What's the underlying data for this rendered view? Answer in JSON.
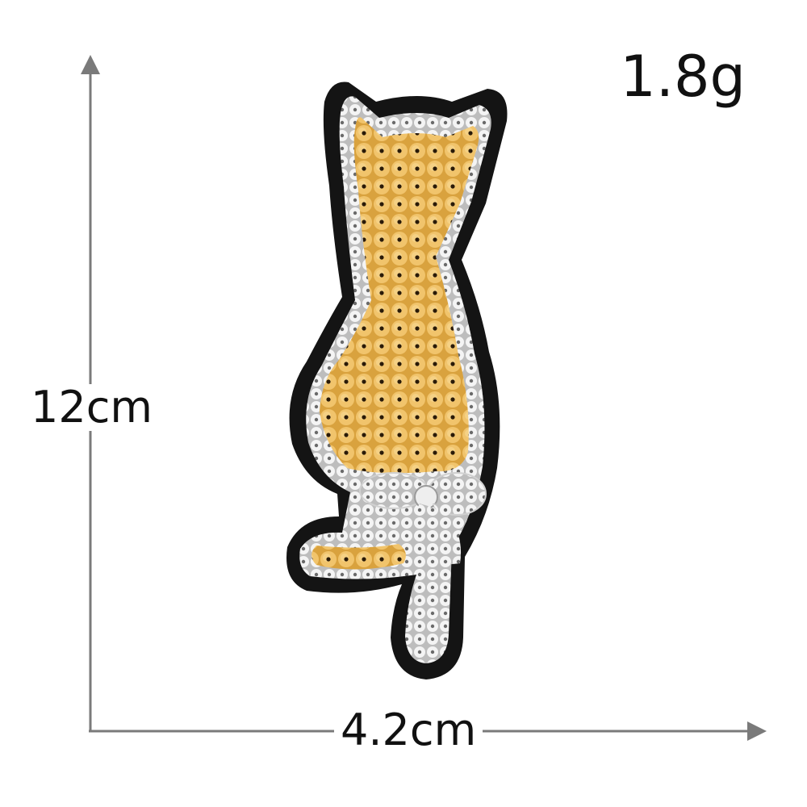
{
  "labels": {
    "weight": "1.8g",
    "height": "12cm",
    "width": "4.2cm"
  },
  "colors": {
    "background": "#ffffff",
    "felt_border": "#141414",
    "sequin_gold": "#d9a23e",
    "sequin_silver": "#e9e9e9",
    "dimension_line": "#7a7a7a",
    "text": "#111111"
  },
  "icons": {
    "vertical_arrow": "arrow-up-icon",
    "horizontal_arrow": "arrow-right-icon"
  }
}
